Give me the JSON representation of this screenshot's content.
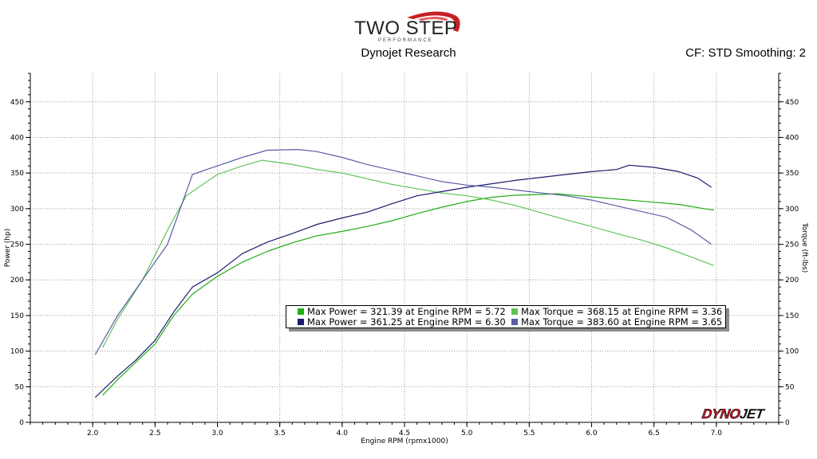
{
  "header": {
    "brand_line1": "TWO STEP",
    "brand_line2": "PERFORMANCE",
    "subtitle": "Dynojet Research",
    "corrections": "CF: STD Smoothing: 2"
  },
  "watermark": {
    "part1": "DYNO",
    "part2": "JET"
  },
  "colors": {
    "run1_power": "#1fae14",
    "run1_torque": "#5fc35a",
    "run2_power": "#1c1c6e",
    "run2_torque": "#5c5ca8",
    "grid": "#9a9a9a",
    "background": "#ffffff"
  },
  "legend": [
    {
      "label": "Max Power = 321.39 at Engine RPM = 5.72",
      "color": "#1fae14"
    },
    {
      "label": "Max Torque = 368.15 at Engine RPM = 3.36",
      "color": "#5fc35a"
    },
    {
      "label": "Max Power = 361.25 at Engine RPM = 6.30",
      "color": "#1c1c6e"
    },
    {
      "label": "Max Torque = 383.60 at Engine RPM = 3.65",
      "color": "#5c5ca8"
    }
  ],
  "chart_data": {
    "type": "line",
    "xlabel": "Engine RPM (rpmx1000)",
    "ylabel_left": "Power (hp)",
    "ylabel_right": "Torque (ft-lbs)",
    "xlim": [
      1.5,
      7.5
    ],
    "ylim": [
      0,
      490
    ],
    "x_ticks": [
      2.0,
      2.5,
      3.0,
      3.5,
      4.0,
      4.5,
      5.0,
      5.5,
      6.0,
      6.5,
      7.0
    ],
    "y_ticks": [
      0,
      50,
      100,
      150,
      200,
      250,
      300,
      350,
      400,
      450
    ],
    "grid": true,
    "series": [
      {
        "name": "Max Power = 321.39 at Engine RPM = 5.72",
        "axis": "left",
        "color": "#1fae14",
        "x": [
          2.08,
          2.2,
          2.35,
          2.5,
          2.65,
          2.8,
          3.0,
          3.2,
          3.4,
          3.6,
          3.8,
          4.0,
          4.2,
          4.4,
          4.6,
          4.8,
          5.0,
          5.2,
          5.4,
          5.6,
          5.72,
          5.9,
          6.1,
          6.3,
          6.5,
          6.7,
          6.9,
          6.98
        ],
        "y": [
          38,
          60,
          85,
          110,
          150,
          180,
          205,
          225,
          240,
          252,
          262,
          268,
          275,
          283,
          293,
          302,
          310,
          316,
          319,
          320,
          321,
          318,
          315,
          312,
          309,
          306,
          300,
          298
        ]
      },
      {
        "name": "Max Torque = 368.15 at Engine RPM = 3.36",
        "axis": "right",
        "color": "#5fc35a",
        "x": [
          2.08,
          2.2,
          2.4,
          2.6,
          2.75,
          3.0,
          3.2,
          3.36,
          3.6,
          3.8,
          4.0,
          4.2,
          4.4,
          4.6,
          4.8,
          5.0,
          5.2,
          5.4,
          5.6,
          5.8,
          6.0,
          6.2,
          6.4,
          6.6,
          6.8,
          6.98
        ],
        "y": [
          105,
          145,
          200,
          270,
          318,
          348,
          360,
          368,
          362,
          355,
          350,
          342,
          334,
          328,
          322,
          318,
          312,
          304,
          294,
          284,
          275,
          265,
          256,
          245,
          232,
          220
        ]
      },
      {
        "name": "Max Power = 361.25 at Engine RPM = 6.30",
        "axis": "left",
        "color": "#1c1c6e",
        "x": [
          2.02,
          2.2,
          2.35,
          2.5,
          2.65,
          2.8,
          3.0,
          3.2,
          3.4,
          3.6,
          3.8,
          4.0,
          4.2,
          4.4,
          4.6,
          4.8,
          5.0,
          5.2,
          5.4,
          5.6,
          5.8,
          6.0,
          6.2,
          6.3,
          6.5,
          6.7,
          6.85,
          6.96
        ],
        "y": [
          35,
          65,
          88,
          115,
          155,
          190,
          210,
          237,
          253,
          265,
          278,
          287,
          295,
          307,
          318,
          324,
          330,
          335,
          340,
          344,
          348,
          352,
          355,
          361,
          358,
          352,
          343,
          330
        ]
      },
      {
        "name": "Max Torque = 383.60 at Engine RPM = 3.65",
        "axis": "right",
        "color": "#5c5ca8",
        "x": [
          2.02,
          2.2,
          2.4,
          2.6,
          2.8,
          3.0,
          3.2,
          3.4,
          3.65,
          3.8,
          4.0,
          4.2,
          4.4,
          4.6,
          4.8,
          5.0,
          5.2,
          5.4,
          5.6,
          5.8,
          6.0,
          6.2,
          6.4,
          6.6,
          6.8,
          6.96
        ],
        "y": [
          95,
          150,
          200,
          250,
          348,
          360,
          372,
          382,
          383,
          380,
          372,
          362,
          354,
          346,
          338,
          333,
          330,
          326,
          322,
          318,
          312,
          304,
          296,
          288,
          270,
          250
        ]
      }
    ]
  }
}
